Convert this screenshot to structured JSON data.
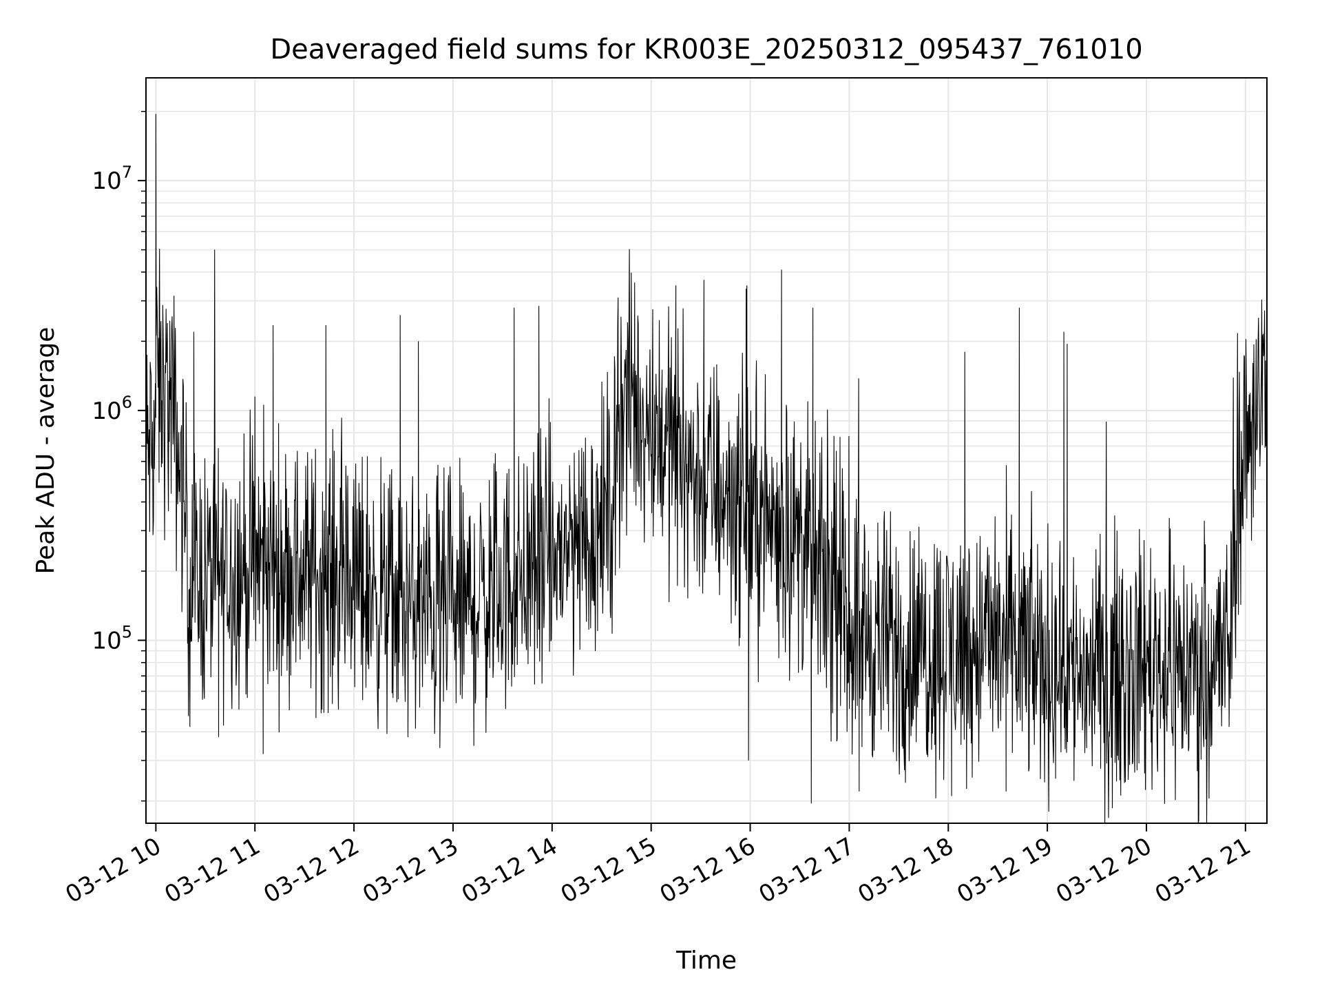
{
  "chart_data": {
    "type": "line",
    "title": "Deaveraged field sums for KR003E_20250312_095437_761010",
    "xlabel": "Time",
    "ylabel": "Peak ADU - average",
    "yscale": "log",
    "grid": true,
    "ylim": [
      16000,
      28000000
    ],
    "xlim": [
      "2025-03-12 09:54",
      "2025-03-12 21:13"
    ],
    "x_ticks": [
      {
        "at": "2025-03-12 10:00",
        "label": "03-12 10"
      },
      {
        "at": "2025-03-12 11:00",
        "label": "03-12 11"
      },
      {
        "at": "2025-03-12 12:00",
        "label": "03-12 12"
      },
      {
        "at": "2025-03-12 13:00",
        "label": "03-12 13"
      },
      {
        "at": "2025-03-12 14:00",
        "label": "03-12 14"
      },
      {
        "at": "2025-03-12 15:00",
        "label": "03-12 15"
      },
      {
        "at": "2025-03-12 16:00",
        "label": "03-12 16"
      },
      {
        "at": "2025-03-12 17:00",
        "label": "03-12 17"
      },
      {
        "at": "2025-03-12 18:00",
        "label": "03-12 18"
      },
      {
        "at": "2025-03-12 19:00",
        "label": "03-12 19"
      },
      {
        "at": "2025-03-12 20:00",
        "label": "03-12 20"
      },
      {
        "at": "2025-03-12 21:00",
        "label": "03-12 21"
      }
    ],
    "y_ticks": [
      {
        "value": 100000,
        "base": "10",
        "exp": "5"
      },
      {
        "value": 1000000,
        "base": "10",
        "exp": "6"
      },
      {
        "value": 10000000,
        "base": "10",
        "exp": "7"
      }
    ],
    "line_color": "#000000",
    "grid_color": "#e6e6e6",
    "series": [
      {
        "envelope": [
          {
            "t": "2025-03-12 09:54",
            "base": 650000
          },
          {
            "t": "2025-03-12 09:59",
            "base": 700000
          },
          {
            "t": "2025-03-12 10:00",
            "base": 1300000
          },
          {
            "t": "2025-03-12 10:10",
            "base": 1000000
          },
          {
            "t": "2025-03-12 10:17",
            "base": 420000
          },
          {
            "t": "2025-03-12 10:20",
            "base": 180000
          },
          {
            "t": "2025-03-12 11:00",
            "base": 210000
          },
          {
            "t": "2025-03-12 12:00",
            "base": 185000
          },
          {
            "t": "2025-03-12 12:30",
            "base": 140000
          },
          {
            "t": "2025-03-12 13:00",
            "base": 130000
          },
          {
            "t": "2025-03-12 13:30",
            "base": 170000
          },
          {
            "t": "2025-03-12 14:00",
            "base": 220000
          },
          {
            "t": "2025-03-12 14:35",
            "base": 350000
          },
          {
            "t": "2025-03-12 14:42",
            "base": 1100000
          },
          {
            "t": "2025-03-12 15:00",
            "base": 900000
          },
          {
            "t": "2025-03-12 15:30",
            "base": 500000
          },
          {
            "t": "2025-03-12 16:00",
            "base": 380000
          },
          {
            "t": "2025-03-12 16:30",
            "base": 270000
          },
          {
            "t": "2025-03-12 17:00",
            "base": 120000
          },
          {
            "t": "2025-03-12 17:30",
            "base": 90000
          },
          {
            "t": "2025-03-12 18:00",
            "base": 95000
          },
          {
            "t": "2025-03-12 18:30",
            "base": 100000
          },
          {
            "t": "2025-03-12 19:00",
            "base": 80000
          },
          {
            "t": "2025-03-12 19:30",
            "base": 70000
          },
          {
            "t": "2025-03-12 20:00",
            "base": 80000
          },
          {
            "t": "2025-03-12 20:30",
            "base": 75000
          },
          {
            "t": "2025-03-12 20:50",
            "base": 90000
          },
          {
            "t": "2025-03-12 20:56",
            "base": 500000
          },
          {
            "t": "2025-03-12 21:05",
            "base": 1000000
          },
          {
            "t": "2025-03-12 21:13",
            "base": 1600000
          }
        ],
        "spikes": [
          {
            "t": "2025-03-12 10:00",
            "value": 19500000
          },
          {
            "t": "2025-03-12 10:02",
            "value": 2800000
          },
          {
            "t": "2025-03-12 10:07",
            "value": 2400000
          },
          {
            "t": "2025-03-12 10:23",
            "value": 2200000
          },
          {
            "t": "2025-03-12 11:00",
            "value": 1150000
          },
          {
            "t": "2025-03-12 11:11",
            "value": 2350000
          },
          {
            "t": "2025-03-12 11:43",
            "value": 2350000
          },
          {
            "t": "2025-03-12 12:28",
            "value": 2600000
          },
          {
            "t": "2025-03-12 12:39",
            "value": 2000000
          },
          {
            "t": "2025-03-12 13:37",
            "value": 2800000
          },
          {
            "t": "2025-03-12 13:52",
            "value": 2850000
          },
          {
            "t": "2025-03-12 14:40",
            "value": 3100000
          },
          {
            "t": "2025-03-12 14:50",
            "value": 3600000
          },
          {
            "t": "2025-03-12 15:15",
            "value": 3500000
          },
          {
            "t": "2025-03-12 15:32",
            "value": 3700000
          },
          {
            "t": "2025-03-12 15:58",
            "value": 3500000
          },
          {
            "t": "2025-03-12 16:19",
            "value": 4100000
          },
          {
            "t": "2025-03-12 16:38",
            "value": 2800000
          },
          {
            "t": "2025-03-12 18:43",
            "value": 2800000
          },
          {
            "t": "2025-03-12 18:10",
            "value": 1800000
          },
          {
            "t": "2025-03-12 19:10",
            "value": 2200000
          },
          {
            "t": "2025-03-12 19:12",
            "value": 1950000
          },
          {
            "t": "2025-03-12 21:13",
            "value": 3000000
          }
        ],
        "dips": [
          {
            "t": "2025-03-12 10:38",
            "value": 38000
          },
          {
            "t": "2025-03-12 11:05",
            "value": 32000
          },
          {
            "t": "2025-03-12 12:52",
            "value": 34000
          },
          {
            "t": "2025-03-12 15:59",
            "value": 30000
          },
          {
            "t": "2025-03-12 16:37",
            "value": 19500
          },
          {
            "t": "2025-03-12 17:06",
            "value": 22000
          },
          {
            "t": "2025-03-12 18:02",
            "value": 21000
          },
          {
            "t": "2025-03-12 18:35",
            "value": 22000
          },
          {
            "t": "2025-03-12 19:05",
            "value": 25000
          }
        ]
      }
    ]
  }
}
